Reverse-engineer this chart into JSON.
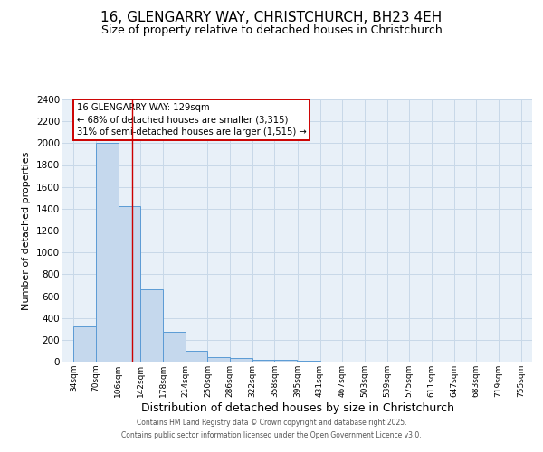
{
  "title": "16, GLENGARRY WAY, CHRISTCHURCH, BH23 4EH",
  "subtitle": "Size of property relative to detached houses in Christchurch",
  "xlabel": "Distribution of detached houses by size in Christchurch",
  "ylabel": "Number of detached properties",
  "bar_left_edges": [
    34,
    70,
    106,
    142,
    178,
    214,
    250,
    286,
    322,
    358,
    395,
    431,
    467,
    503,
    539,
    575,
    611,
    647,
    683,
    719
  ],
  "bar_heights": [
    325,
    2000,
    1420,
    660,
    275,
    100,
    45,
    30,
    20,
    15,
    10,
    0,
    0,
    0,
    0,
    0,
    0,
    0,
    0,
    0
  ],
  "bin_width": 36,
  "bar_color": "#c5d8ed",
  "bar_edge_color": "#5b9bd5",
  "vline_x": 129,
  "vline_color": "#cc0000",
  "ylim": [
    0,
    2400
  ],
  "yticks": [
    0,
    200,
    400,
    600,
    800,
    1000,
    1200,
    1400,
    1600,
    1800,
    2000,
    2200,
    2400
  ],
  "xtick_labels": [
    "34sqm",
    "70sqm",
    "106sqm",
    "142sqm",
    "178sqm",
    "214sqm",
    "250sqm",
    "286sqm",
    "322sqm",
    "358sqm",
    "395sqm",
    "431sqm",
    "467sqm",
    "503sqm",
    "539sqm",
    "575sqm",
    "611sqm",
    "647sqm",
    "683sqm",
    "719sqm",
    "755sqm"
  ],
  "xtick_positions": [
    34,
    70,
    106,
    142,
    178,
    214,
    250,
    286,
    322,
    358,
    395,
    431,
    467,
    503,
    539,
    575,
    611,
    647,
    683,
    719,
    755
  ],
  "xlim_left": 16,
  "xlim_right": 773,
  "annotation_title": "16 GLENGARRY WAY: 129sqm",
  "annotation_line1": "← 68% of detached houses are smaller (3,315)",
  "annotation_line2": "31% of semi-detached houses are larger (1,515) →",
  "annotation_box_color": "#ffffff",
  "annotation_box_edge_color": "#cc0000",
  "grid_color": "#c8d8e8",
  "bg_color": "#e8f0f8",
  "footer1": "Contains HM Land Registry data © Crown copyright and database right 2025.",
  "footer2": "Contains public sector information licensed under the Open Government Licence v3.0.",
  "title_fontsize": 11,
  "subtitle_fontsize": 9,
  "xlabel_fontsize": 9,
  "ylabel_fontsize": 8
}
